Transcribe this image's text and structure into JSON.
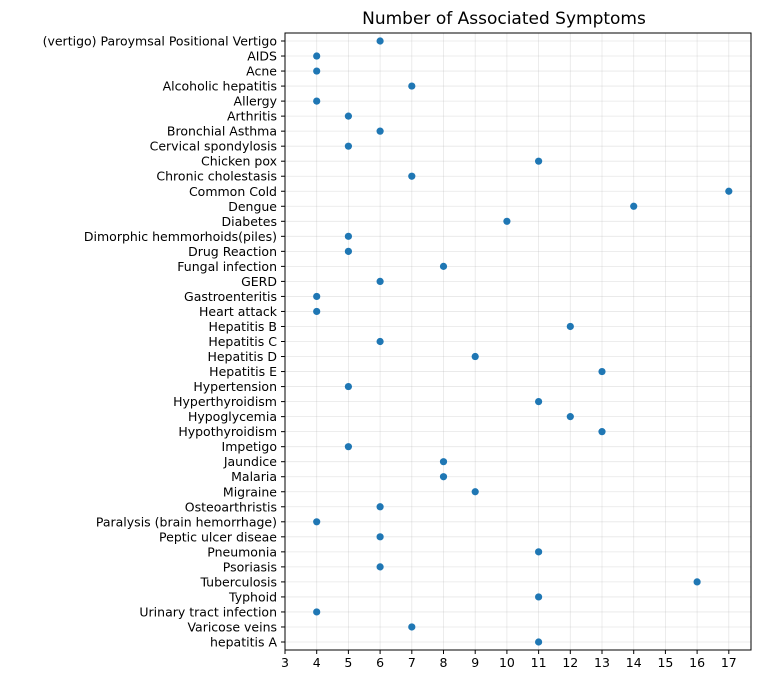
{
  "chart_data": {
    "type": "scatter",
    "title": "Number of Associated Symptoms",
    "xlabel": "",
    "ylabel": "",
    "xlim": [
      3,
      17.7
    ],
    "xticks": [
      3,
      4,
      5,
      6,
      7,
      8,
      9,
      10,
      11,
      12,
      13,
      14,
      15,
      16,
      17
    ],
    "grid": true,
    "marker_color": "#1f77b4",
    "categories": [
      "(vertigo) Paroymsal  Positional Vertigo",
      "AIDS",
      "Acne",
      "Alcoholic hepatitis",
      "Allergy",
      "Arthritis",
      "Bronchial Asthma",
      "Cervical spondylosis",
      "Chicken pox",
      "Chronic cholestasis",
      "Common Cold",
      "Dengue",
      "Diabetes ",
      "Dimorphic hemmorhoids(piles)",
      "Drug Reaction",
      "Fungal infection",
      "GERD",
      "Gastroenteritis",
      "Heart attack",
      "Hepatitis B",
      "Hepatitis C",
      "Hepatitis D",
      "Hepatitis E",
      "Hypertension ",
      "Hyperthyroidism",
      "Hypoglycemia",
      "Hypothyroidism",
      "Impetigo",
      "Jaundice",
      "Malaria",
      "Migraine",
      "Osteoarthristis",
      "Paralysis (brain hemorrhage)",
      "Peptic ulcer diseae",
      "Pneumonia",
      "Psoriasis",
      "Tuberculosis",
      "Typhoid",
      "Urinary tract infection",
      "Varicose veins",
      "hepatitis A"
    ],
    "values": [
      6,
      4,
      4,
      7,
      4,
      5,
      6,
      5,
      11,
      7,
      17,
      14,
      10,
      5,
      5,
      8,
      6,
      4,
      4,
      12,
      6,
      9,
      13,
      5,
      11,
      12,
      13,
      5,
      8,
      8,
      9,
      6,
      4,
      6,
      11,
      6,
      16,
      11,
      4,
      7,
      11
    ]
  }
}
